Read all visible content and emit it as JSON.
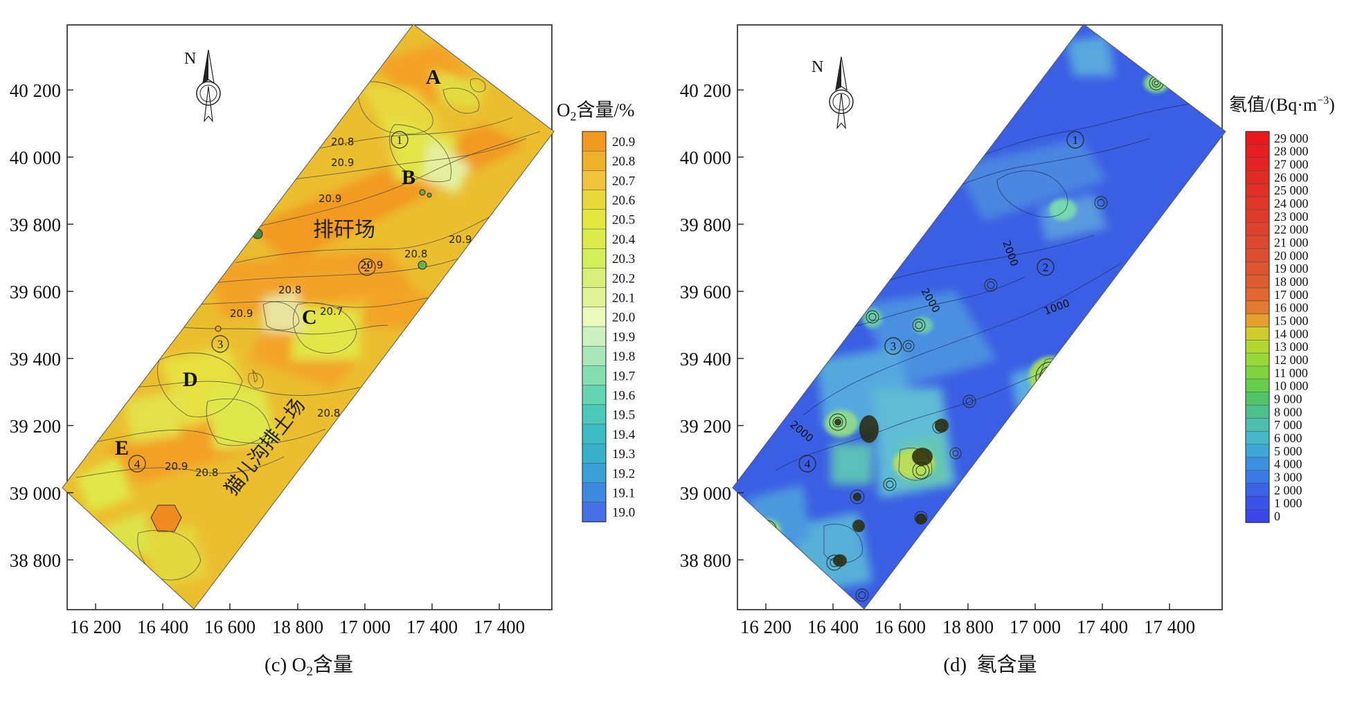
{
  "panels": [
    {
      "id": "o2",
      "caption_prefix": "(c) O",
      "caption_sub": "2",
      "caption_suffix": "含量",
      "y_ticks": [
        "40 200",
        "40 000",
        "39 800",
        "39 600",
        "39 400",
        "39 200",
        "39 000",
        "38 800"
      ],
      "x_ticks": [
        "16 200",
        "16 400",
        "16 600",
        "18 800",
        "17 000",
        "17 400",
        "17 400"
      ],
      "north": "N",
      "legend_title_prefix": "O",
      "legend_title_sub": "2",
      "legend_title_suffix": "含量/%",
      "legend_labels": [
        "20.9",
        "20.8",
        "20.7",
        "20.6",
        "20.5",
        "20.4",
        "20.3",
        "20.2",
        "20.1",
        "20.0",
        "19.9",
        "19.8",
        "19.7",
        "19.6",
        "19.5",
        "19.4",
        "19.3",
        "19.2",
        "19.1",
        "19.0"
      ],
      "legend_colors": [
        "#f29a20",
        "#f0b02a",
        "#efc33a",
        "#e8d83a",
        "#e2e83e",
        "#dbec4a",
        "#d5ee5c",
        "#d8f07a",
        "#e2f49a",
        "#ecf8bc",
        "#ccf0c0",
        "#a8e8b8",
        "#84deb0",
        "#62d4b0",
        "#4cc8b8",
        "#3cbcc2",
        "#38b0cc",
        "#3aa0d8",
        "#3d88e0",
        "#4870e6"
      ],
      "labels": [
        {
          "text": "A"
        },
        {
          "text": "B"
        },
        {
          "text": "C"
        },
        {
          "text": "D"
        },
        {
          "text": "E"
        },
        {
          "text": "排矸场"
        },
        {
          "text": "猫儿沟排土场"
        }
      ],
      "circled": [
        "1",
        "2",
        "3",
        "4"
      ],
      "contour_values": [
        "20.8",
        "20.9",
        "20.9",
        "20.9",
        "20.8",
        "20.9",
        "20.8",
        "20.9",
        "20.7",
        "20.8",
        "20.9",
        "20.8"
      ]
    },
    {
      "id": "radon",
      "caption_prefix": "(d)  氡含量",
      "y_ticks": [
        "40 200",
        "40 000",
        "39 800",
        "39 600",
        "39 400",
        "39 200",
        "39 000",
        "38 800"
      ],
      "x_ticks": [
        "16 200",
        "16 400",
        "16 600",
        "18 800",
        "17 000",
        "17 400",
        "17 400"
      ],
      "north": "N",
      "legend_title_prefix": "氡值/(Bq·m",
      "legend_title_sup": "−3",
      "legend_title_suffix": ")",
      "legend_labels": [
        "29 000",
        "28 000",
        "27 000",
        "26 000",
        "25 000",
        "24 000",
        "23 000",
        "22 000",
        "21 000",
        "20 000",
        "19 000",
        "18 000",
        "17 000",
        "16 000",
        "15 000",
        "14 000",
        "13 000",
        "12 000",
        "11 000",
        "10 000",
        "9 000",
        "8 000",
        "7 000",
        "6 000",
        "5 000",
        "4 000",
        "3 000",
        "2 000",
        "1 000",
        "0"
      ],
      "legend_colors": [
        "#e8181c",
        "#e61e20",
        "#e42422",
        "#e22a24",
        "#e03026",
        "#df3628",
        "#de3c2a",
        "#dd422c",
        "#dc482e",
        "#db4e30",
        "#dc5430",
        "#de5c30",
        "#e06830",
        "#e27a30",
        "#e4a02c",
        "#cccc2c",
        "#b0d830",
        "#98d838",
        "#7ed440",
        "#66cc4c",
        "#52c468",
        "#4ec090",
        "#4cbeb0",
        "#46b8c8",
        "#40a8d8",
        "#3c90e0",
        "#3a78e4",
        "#3a62e6",
        "#3a52e8",
        "#3a46ea"
      ],
      "circled": [
        "1",
        "2",
        "3",
        "4"
      ],
      "contour_values": [
        "2000",
        "2000",
        "1000",
        "2000"
      ]
    }
  ]
}
